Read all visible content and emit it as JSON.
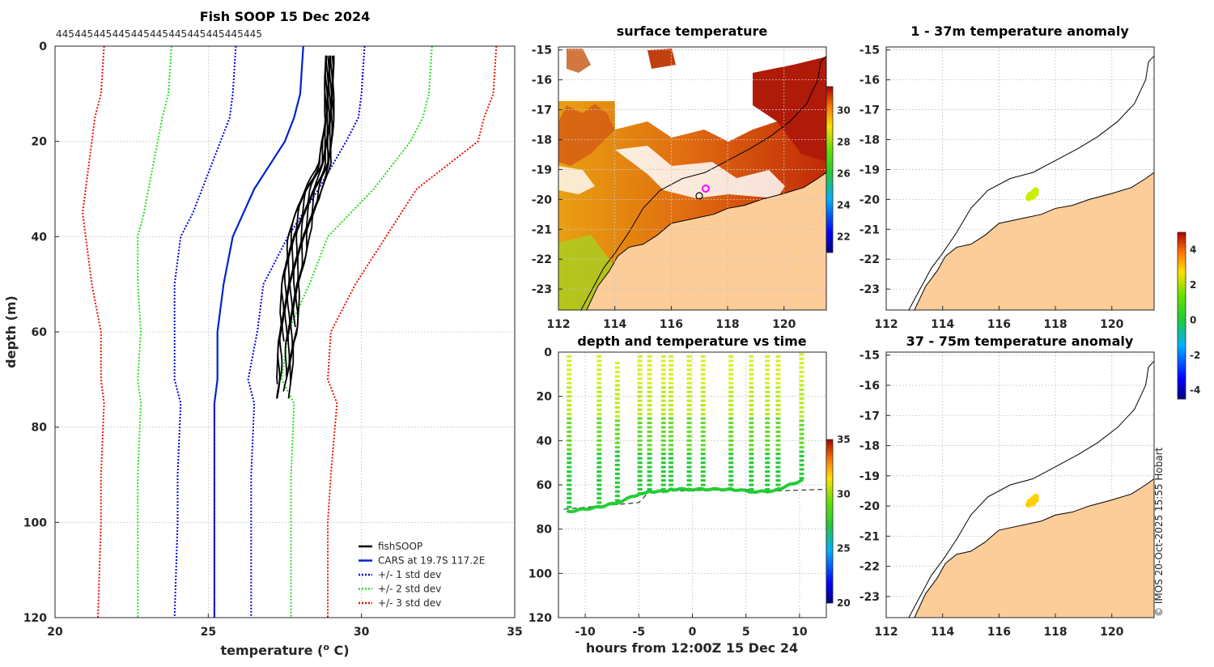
{
  "colors": {
    "fishsoop": "#000000",
    "cars": "#0022cc",
    "std1": "#0000dd",
    "std2": "#22dd22",
    "std3": "#ee1100",
    "land": "#fccc99",
    "coast": "#000000"
  },
  "profile": {
    "title": "Fish SOOP 15 Dec 2024",
    "top_counts": [
      "445",
      "445",
      "445",
      "445",
      "445",
      "445",
      "445",
      "445",
      "445",
      "445",
      "445"
    ],
    "xlabel": "temperature (",
    "xlabel_sup": "o",
    "xlabel_unit": " C)",
    "ylabel": "depth (m)",
    "xticks": [
      "20",
      "25",
      "30",
      "35"
    ],
    "yticks": [
      "0",
      "20",
      "40",
      "60",
      "80",
      "100",
      "120"
    ],
    "legend": [
      "fishSOOP",
      "CARS at 19.7S 117.2E",
      "+/- 1 std dev",
      "+/- 2 std dev",
      "+/- 3 std dev"
    ]
  },
  "sst": {
    "title": "surface temperature",
    "xticks": [
      "112",
      "114",
      "116",
      "118",
      "120"
    ],
    "yticks": [
      "-15",
      "-16",
      "-17",
      "-18",
      "-19",
      "-20",
      "-21",
      "-22",
      "-23"
    ],
    "cbar_ticks": [
      "30",
      "28",
      "26",
      "24",
      "22"
    ]
  },
  "timeseries": {
    "title": "depth and temperature vs time",
    "xlabel": "hours from 12:00Z 15 Dec 24",
    "xticks": [
      "-10",
      "-5",
      "0",
      "5",
      "10"
    ],
    "yticks": [
      "0",
      "20",
      "40",
      "60",
      "80",
      "100",
      "120"
    ],
    "cbar_ticks": [
      "35",
      "30",
      "25",
      "20"
    ]
  },
  "anom1": {
    "title": "1 - 37m temperature anomaly",
    "xticks": [
      "112",
      "114",
      "116",
      "118",
      "120"
    ],
    "yticks": [
      "-15",
      "-16",
      "-17",
      "-18",
      "-19",
      "-20",
      "-21",
      "-22",
      "-23"
    ]
  },
  "anom2": {
    "title": "37 - 75m temperature anomaly",
    "xticks": [
      "112",
      "114",
      "116",
      "118",
      "120"
    ],
    "yticks": [
      "-15",
      "-16",
      "-17",
      "-18",
      "-19",
      "-20",
      "-21",
      "-22",
      "-23"
    ]
  },
  "anom_cbar_ticks": [
    "4",
    "2",
    "0",
    "-2",
    "-4"
  ],
  "credit": "© IMOS 20-Oct-2025 15:55 Hobart",
  "chart_data": [
    {
      "type": "line",
      "title": "Fish SOOP 15 Dec 2024",
      "xlabel": "temperature (o C)",
      "ylabel": "depth (m)",
      "xlim": [
        20,
        35
      ],
      "ylim": [
        120,
        0
      ],
      "series": [
        {
          "name": "CARS at 19.7S 117.2E",
          "x": [
            28.1,
            28.0,
            27.8,
            27.5,
            26.5,
            25.8,
            25.5,
            25.3,
            25.3,
            25.2,
            25.2,
            25.2,
            25.2
          ],
          "y": [
            0,
            10,
            15,
            20,
            30,
            40,
            50,
            60,
            70,
            75,
            90,
            100,
            120
          ]
        },
        {
          "name": "+/- 1 std dev (low)",
          "x": [
            25.9,
            25.8,
            25.7,
            25.1,
            24.5,
            24.1,
            23.9,
            23.9,
            23.9,
            24.1,
            24.0,
            24.0,
            23.9
          ],
          "y": [
            0,
            10,
            15,
            25,
            35,
            40,
            50,
            60,
            70,
            75,
            90,
            100,
            120
          ]
        },
        {
          "name": "+/- 1 std dev (high)",
          "x": [
            30.1,
            30.0,
            29.9,
            29.5,
            28.6,
            27.6,
            26.8,
            26.6,
            26.3,
            26.5,
            26.4,
            26.4,
            26.4
          ],
          "y": [
            0,
            10,
            15,
            20,
            30,
            40,
            50,
            60,
            70,
            75,
            90,
            100,
            120
          ]
        },
        {
          "name": "+/- 2 std dev (low)",
          "x": [
            23.8,
            23.7,
            23.5,
            23.2,
            22.9,
            22.7,
            22.7,
            22.8,
            22.7,
            22.8,
            22.7,
            22.7,
            22.7
          ],
          "y": [
            0,
            10,
            15,
            25,
            35,
            40,
            50,
            60,
            70,
            75,
            90,
            100,
            120
          ]
        },
        {
          "name": "+/- 2 std dev (high)",
          "x": [
            32.3,
            32.2,
            32.0,
            31.6,
            30.4,
            28.9,
            28.3,
            27.6,
            27.4,
            27.8,
            27.7,
            27.7,
            27.7
          ],
          "y": [
            0,
            10,
            15,
            20,
            30,
            40,
            50,
            60,
            70,
            75,
            90,
            100,
            120
          ]
        },
        {
          "name": "+/- 3 std dev (low)",
          "x": [
            21.6,
            21.5,
            21.3,
            21.0,
            20.9,
            21.0,
            21.2,
            21.5,
            21.5,
            21.6,
            21.5,
            21.5,
            21.4
          ],
          "y": [
            0,
            10,
            15,
            30,
            35,
            40,
            50,
            60,
            70,
            75,
            90,
            100,
            120
          ]
        },
        {
          "name": "+/- 3 std dev (high)",
          "x": [
            34.4,
            34.3,
            34.0,
            33.8,
            31.8,
            30.8,
            29.8,
            29.0,
            28.9,
            29.2,
            29.0,
            28.9,
            28.9
          ],
          "y": [
            0,
            10,
            15,
            20,
            30,
            40,
            50,
            60,
            70,
            75,
            90,
            100,
            120
          ]
        },
        {
          "name": "fishSOOP (envelope low)",
          "x": [
            28.8,
            28.8,
            28.6,
            28.1,
            27.6,
            27.4,
            27.3,
            27.2
          ],
          "y": [
            2,
            15,
            25,
            30,
            40,
            50,
            60,
            75
          ]
        },
        {
          "name": "fishSOOP (envelope high)",
          "x": [
            29.1,
            29.1,
            29.0,
            28.7,
            28.3,
            28.0,
            27.9,
            27.6
          ],
          "y": [
            2,
            15,
            25,
            30,
            40,
            50,
            60,
            75
          ]
        }
      ]
    },
    {
      "type": "scatter",
      "title": "depth and temperature vs time",
      "xlabel": "hours from 12:00Z 15 Dec 24",
      "ylabel": "",
      "xlim": [
        -12.5,
        12.5
      ],
      "ylim": [
        120,
        0
      ],
      "colorbar": {
        "range": [
          20,
          35
        ]
      },
      "series": [
        {
          "name": "bottom depth (dashed)",
          "x": [
            -12,
            -5,
            -4,
            5,
            6,
            12.5
          ],
          "y": [
            71,
            68,
            63,
            62,
            63,
            62
          ]
        },
        {
          "name": "casts",
          "x": [
            -11.5,
            -8.7,
            -7.0,
            -4.9,
            -4.0,
            -2.7,
            -2.0,
            -0.3,
            1.0,
            3.6,
            5.5,
            7.0,
            8.0,
            10.2
          ],
          "y": [
            72,
            70,
            68,
            64,
            63,
            63,
            62,
            62,
            62,
            62,
            63,
            63,
            62,
            58
          ],
          "min_depth": [
            2,
            2,
            5,
            2,
            2,
            2,
            2,
            2,
            2,
            2,
            2,
            2,
            2,
            1
          ]
        }
      ]
    }
  ]
}
